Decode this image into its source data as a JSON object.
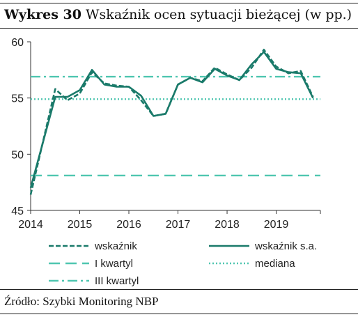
{
  "title": {
    "bold": "Wykres 30",
    "text": "Wskaźnik ocen sytuacji bieżącej (w pp.)"
  },
  "source": "Źródło: Szybki Monitoring NBP",
  "colors": {
    "series": "#1a7a6a",
    "reference": "#4fc6b0",
    "axis": "#333333"
  },
  "chart_data": {
    "type": "line",
    "title": "Wskaźnik ocen sytuacji bieżącej (w pp.)",
    "xlabel": "",
    "ylabel": "",
    "xlim": [
      2014,
      2019.9
    ],
    "ylim": [
      45,
      60
    ],
    "yticks": [
      45,
      50,
      55,
      60
    ],
    "xticks": [
      "2014",
      "2015",
      "2016",
      "2017",
      "2018",
      "2019"
    ],
    "grid": false,
    "legend_position": "bottom",
    "series": [
      {
        "name": "wskaźnik",
        "style": "dashed",
        "x": [
          2014.0,
          2014.5,
          2014.75,
          2015.0,
          2015.25,
          2015.5,
          2015.75,
          2016.0,
          2016.25,
          2016.5,
          2016.75,
          2017.0,
          2017.25,
          2017.5,
          2017.75,
          2018.0,
          2018.25,
          2018.5,
          2018.75,
          2019.0,
          2019.25,
          2019.5,
          2019.75
        ],
        "y": [
          46.4,
          55.8,
          54.8,
          55.4,
          57.3,
          56.3,
          56.1,
          56.0,
          54.8,
          53.4,
          53.6,
          56.2,
          56.8,
          56.5,
          57.7,
          57.1,
          56.6,
          57.7,
          59.3,
          57.8,
          57.2,
          57.4,
          55.1
        ]
      },
      {
        "name": "wskaźnik s.a.",
        "style": "solid",
        "x": [
          2014.0,
          2014.5,
          2014.75,
          2015.0,
          2015.25,
          2015.5,
          2015.75,
          2016.0,
          2016.25,
          2016.5,
          2016.75,
          2017.0,
          2017.25,
          2017.5,
          2017.75,
          2018.0,
          2018.25,
          2018.5,
          2018.75,
          2019.0,
          2019.25,
          2019.5,
          2019.75
        ],
        "y": [
          47.0,
          55.1,
          55.1,
          55.7,
          57.5,
          56.2,
          56.0,
          56.0,
          55.2,
          53.4,
          53.6,
          56.2,
          56.8,
          56.4,
          57.6,
          57.0,
          56.6,
          58.0,
          59.1,
          57.6,
          57.3,
          57.2,
          55.0
        ]
      },
      {
        "name": "I kwartyl",
        "style": "long-dash",
        "value": 48.1
      },
      {
        "name": "mediana",
        "style": "dotted",
        "value": 54.9
      },
      {
        "name": "III kwartyl",
        "style": "dash-dot",
        "value": 56.9
      }
    ]
  }
}
